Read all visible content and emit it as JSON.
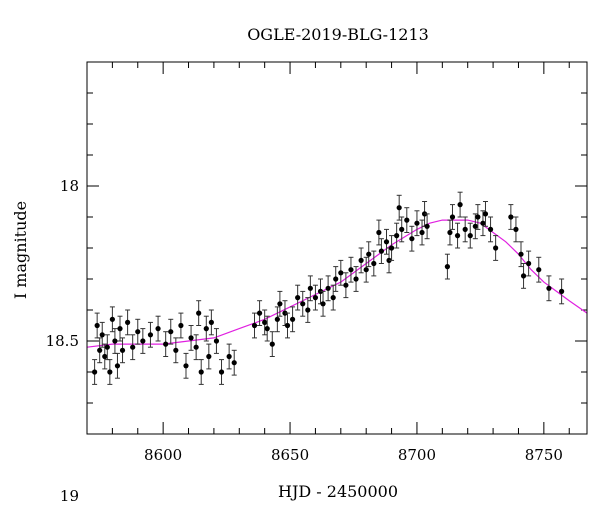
{
  "chart_data": {
    "type": "scatter",
    "title": "OGLE-2019-BLG-1213",
    "xlabel": "HJD - 2450000",
    "ylabel": "I magnitude",
    "xlim": [
      8570,
      8767
    ],
    "ylim": [
      18.8,
      17.6
    ],
    "y_inverted": true,
    "x_ticks": [
      8600,
      8650,
      8700,
      8750
    ],
    "y_ticks": [
      18,
      18.5,
      19
    ],
    "x_tick_labels": [
      "8600",
      "8650",
      "8700",
      "8750"
    ],
    "y_tick_labels": [
      "18",
      "18.5",
      "19"
    ],
    "grid": false,
    "legend": "none",
    "colors": {
      "points": "#000000",
      "model": "#e020e0"
    },
    "model_curve": {
      "x": [
        8570,
        8580,
        8590,
        8600,
        8610,
        8620,
        8630,
        8640,
        8650,
        8660,
        8670,
        8680,
        8690,
        8700,
        8705,
        8710,
        8715,
        8720,
        8725,
        8730,
        8735,
        8740,
        8745,
        8750,
        8755,
        8760,
        8767
      ],
      "y": [
        18.52,
        18.51,
        18.51,
        18.51,
        18.5,
        18.49,
        18.46,
        18.43,
        18.39,
        18.35,
        18.31,
        18.25,
        18.19,
        18.14,
        18.12,
        18.11,
        18.11,
        18.11,
        18.12,
        18.15,
        18.18,
        18.22,
        18.27,
        18.31,
        18.34,
        18.37,
        18.41
      ]
    },
    "observations": [
      {
        "x": 8573,
        "y": 18.6,
        "err": 0.04
      },
      {
        "x": 8574,
        "y": 18.45,
        "err": 0.04
      },
      {
        "x": 8575,
        "y": 18.53,
        "err": 0.04
      },
      {
        "x": 8576,
        "y": 18.48,
        "err": 0.04
      },
      {
        "x": 8577,
        "y": 18.55,
        "err": 0.04
      },
      {
        "x": 8578,
        "y": 18.52,
        "err": 0.04
      },
      {
        "x": 8579,
        "y": 18.6,
        "err": 0.04
      },
      {
        "x": 8580,
        "y": 18.43,
        "err": 0.04
      },
      {
        "x": 8581,
        "y": 18.5,
        "err": 0.04
      },
      {
        "x": 8582,
        "y": 18.58,
        "err": 0.04
      },
      {
        "x": 8583,
        "y": 18.46,
        "err": 0.04
      },
      {
        "x": 8584,
        "y": 18.53,
        "err": 0.04
      },
      {
        "x": 8586,
        "y": 18.44,
        "err": 0.04
      },
      {
        "x": 8588,
        "y": 18.52,
        "err": 0.04
      },
      {
        "x": 8590,
        "y": 18.47,
        "err": 0.04
      },
      {
        "x": 8592,
        "y": 18.5,
        "err": 0.04
      },
      {
        "x": 8595,
        "y": 18.48,
        "err": 0.04
      },
      {
        "x": 8598,
        "y": 18.46,
        "err": 0.04
      },
      {
        "x": 8601,
        "y": 18.51,
        "err": 0.04
      },
      {
        "x": 8603,
        "y": 18.47,
        "err": 0.04
      },
      {
        "x": 8605,
        "y": 18.53,
        "err": 0.04
      },
      {
        "x": 8607,
        "y": 18.45,
        "err": 0.04
      },
      {
        "x": 8609,
        "y": 18.58,
        "err": 0.04
      },
      {
        "x": 8611,
        "y": 18.49,
        "err": 0.04
      },
      {
        "x": 8613,
        "y": 18.52,
        "err": 0.04
      },
      {
        "x": 8614,
        "y": 18.41,
        "err": 0.04
      },
      {
        "x": 8615,
        "y": 18.6,
        "err": 0.04
      },
      {
        "x": 8617,
        "y": 18.46,
        "err": 0.04
      },
      {
        "x": 8618,
        "y": 18.55,
        "err": 0.04
      },
      {
        "x": 8619,
        "y": 18.44,
        "err": 0.04
      },
      {
        "x": 8621,
        "y": 18.5,
        "err": 0.04
      },
      {
        "x": 8623,
        "y": 18.6,
        "err": 0.04
      },
      {
        "x": 8626,
        "y": 18.55,
        "err": 0.04
      },
      {
        "x": 8628,
        "y": 18.57,
        "err": 0.04
      },
      {
        "x": 8636,
        "y": 18.45,
        "err": 0.04
      },
      {
        "x": 8638,
        "y": 18.41,
        "err": 0.04
      },
      {
        "x": 8640,
        "y": 18.44,
        "err": 0.04
      },
      {
        "x": 8641,
        "y": 18.46,
        "err": 0.04
      },
      {
        "x": 8643,
        "y": 18.51,
        "err": 0.04
      },
      {
        "x": 8645,
        "y": 18.43,
        "err": 0.04
      },
      {
        "x": 8646,
        "y": 18.38,
        "err": 0.04
      },
      {
        "x": 8648,
        "y": 18.41,
        "err": 0.04
      },
      {
        "x": 8649,
        "y": 18.45,
        "err": 0.04
      },
      {
        "x": 8651,
        "y": 18.43,
        "err": 0.04
      },
      {
        "x": 8653,
        "y": 18.36,
        "err": 0.04
      },
      {
        "x": 8655,
        "y": 18.38,
        "err": 0.04
      },
      {
        "x": 8657,
        "y": 18.4,
        "err": 0.04
      },
      {
        "x": 8658,
        "y": 18.33,
        "err": 0.04
      },
      {
        "x": 8660,
        "y": 18.36,
        "err": 0.04
      },
      {
        "x": 8662,
        "y": 18.34,
        "err": 0.04
      },
      {
        "x": 8663,
        "y": 18.38,
        "err": 0.04
      },
      {
        "x": 8665,
        "y": 18.33,
        "err": 0.04
      },
      {
        "x": 8667,
        "y": 18.36,
        "err": 0.04
      },
      {
        "x": 8668,
        "y": 18.3,
        "err": 0.04
      },
      {
        "x": 8670,
        "y": 18.28,
        "err": 0.04
      },
      {
        "x": 8672,
        "y": 18.32,
        "err": 0.04
      },
      {
        "x": 8674,
        "y": 18.27,
        "err": 0.04
      },
      {
        "x": 8676,
        "y": 18.3,
        "err": 0.04
      },
      {
        "x": 8678,
        "y": 18.24,
        "err": 0.04
      },
      {
        "x": 8680,
        "y": 18.27,
        "err": 0.04
      },
      {
        "x": 8681,
        "y": 18.22,
        "err": 0.04
      },
      {
        "x": 8683,
        "y": 18.25,
        "err": 0.04
      },
      {
        "x": 8685,
        "y": 18.15,
        "err": 0.04
      },
      {
        "x": 8686,
        "y": 18.21,
        "err": 0.04
      },
      {
        "x": 8688,
        "y": 18.18,
        "err": 0.04
      },
      {
        "x": 8689,
        "y": 18.24,
        "err": 0.04
      },
      {
        "x": 8690,
        "y": 18.2,
        "err": 0.04
      },
      {
        "x": 8692,
        "y": 18.16,
        "err": 0.04
      },
      {
        "x": 8693,
        "y": 18.07,
        "err": 0.04
      },
      {
        "x": 8694,
        "y": 18.14,
        "err": 0.04
      },
      {
        "x": 8696,
        "y": 18.11,
        "err": 0.04
      },
      {
        "x": 8698,
        "y": 18.17,
        "err": 0.04
      },
      {
        "x": 8700,
        "y": 18.12,
        "err": 0.04
      },
      {
        "x": 8702,
        "y": 18.15,
        "err": 0.04
      },
      {
        "x": 8703,
        "y": 18.09,
        "err": 0.04
      },
      {
        "x": 8704,
        "y": 18.13,
        "err": 0.04
      },
      {
        "x": 8712,
        "y": 18.26,
        "err": 0.04
      },
      {
        "x": 8713,
        "y": 18.15,
        "err": 0.04
      },
      {
        "x": 8714,
        "y": 18.1,
        "err": 0.04
      },
      {
        "x": 8716,
        "y": 18.16,
        "err": 0.04
      },
      {
        "x": 8717,
        "y": 18.06,
        "err": 0.04
      },
      {
        "x": 8719,
        "y": 18.14,
        "err": 0.04
      },
      {
        "x": 8721,
        "y": 18.16,
        "err": 0.04
      },
      {
        "x": 8723,
        "y": 18.13,
        "err": 0.04
      },
      {
        "x": 8724,
        "y": 18.1,
        "err": 0.04
      },
      {
        "x": 8726,
        "y": 18.12,
        "err": 0.04
      },
      {
        "x": 8727,
        "y": 18.09,
        "err": 0.04
      },
      {
        "x": 8729,
        "y": 18.14,
        "err": 0.04
      },
      {
        "x": 8731,
        "y": 18.2,
        "err": 0.04
      },
      {
        "x": 8737,
        "y": 18.1,
        "err": 0.04
      },
      {
        "x": 8739,
        "y": 18.14,
        "err": 0.04
      },
      {
        "x": 8741,
        "y": 18.22,
        "err": 0.04
      },
      {
        "x": 8742,
        "y": 18.29,
        "err": 0.04
      },
      {
        "x": 8744,
        "y": 18.25,
        "err": 0.04
      },
      {
        "x": 8748,
        "y": 18.27,
        "err": 0.04
      },
      {
        "x": 8752,
        "y": 18.33,
        "err": 0.04
      },
      {
        "x": 8757,
        "y": 18.34,
        "err": 0.04
      }
    ]
  }
}
